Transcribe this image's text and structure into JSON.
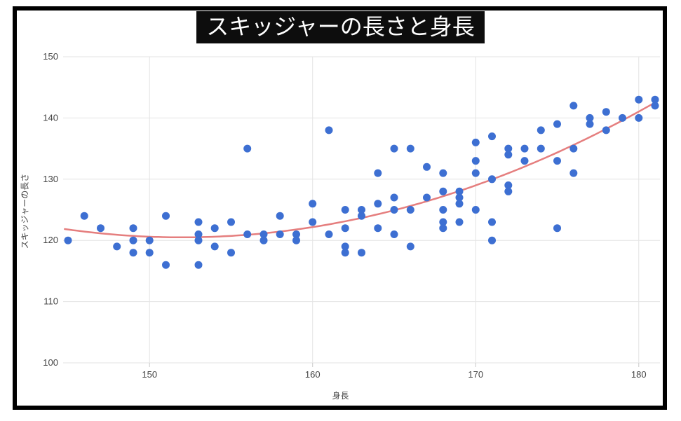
{
  "title": "スキッジャーの長さと身長",
  "colors": {
    "point": "#3d6fd2",
    "trend": "#e57e7e",
    "grid": "#e3e3e3",
    "tick_text": "#444444",
    "title_bg": "#0d0d0d",
    "title_fg": "#ffffff",
    "frame": "#000000"
  },
  "chart_data": {
    "type": "scatter",
    "title": "スキッジャーの長さと身長",
    "xlabel": "身長",
    "ylabel": "スキッジャーの長さ",
    "xlim": [
      144.7,
      181.3
    ],
    "ylim": [
      100,
      150
    ],
    "x_ticks": [
      150,
      160,
      170,
      180
    ],
    "y_ticks": [
      100,
      110,
      120,
      130,
      140,
      150
    ],
    "grid": true,
    "legend": "none",
    "points": [
      [
        145,
        120
      ],
      [
        146,
        124
      ],
      [
        147,
        122
      ],
      [
        148,
        119
      ],
      [
        149,
        122
      ],
      [
        149,
        120
      ],
      [
        149,
        118
      ],
      [
        150,
        120
      ],
      [
        150,
        118
      ],
      [
        151,
        124
      ],
      [
        151,
        116
      ],
      [
        153,
        123
      ],
      [
        153,
        121
      ],
      [
        153,
        120
      ],
      [
        153,
        116
      ],
      [
        154,
        122
      ],
      [
        154,
        119
      ],
      [
        155,
        123
      ],
      [
        155,
        118
      ],
      [
        156,
        135
      ],
      [
        156,
        121
      ],
      [
        157,
        121
      ],
      [
        157,
        120
      ],
      [
        158,
        124
      ],
      [
        158,
        121
      ],
      [
        159,
        121
      ],
      [
        159,
        120
      ],
      [
        160,
        126
      ],
      [
        160,
        123
      ],
      [
        161,
        138
      ],
      [
        161,
        121
      ],
      [
        162,
        125
      ],
      [
        162,
        122
      ],
      [
        162,
        119
      ],
      [
        162,
        118
      ],
      [
        163,
        125
      ],
      [
        163,
        124
      ],
      [
        163,
        118
      ],
      [
        164,
        131
      ],
      [
        164,
        126
      ],
      [
        164,
        122
      ],
      [
        165,
        135
      ],
      [
        165,
        127
      ],
      [
        165,
        125
      ],
      [
        165,
        121
      ],
      [
        166,
        135
      ],
      [
        166,
        125
      ],
      [
        166,
        119
      ],
      [
        167,
        132
      ],
      [
        167,
        127
      ],
      [
        168,
        131
      ],
      [
        168,
        128
      ],
      [
        168,
        125
      ],
      [
        168,
        123
      ],
      [
        168,
        122
      ],
      [
        169,
        128
      ],
      [
        169,
        127
      ],
      [
        169,
        126
      ],
      [
        169,
        123
      ],
      [
        170,
        136
      ],
      [
        170,
        133
      ],
      [
        170,
        131
      ],
      [
        170,
        125
      ],
      [
        171,
        137
      ],
      [
        171,
        130
      ],
      [
        171,
        123
      ],
      [
        171,
        120
      ],
      [
        172,
        135
      ],
      [
        172,
        134
      ],
      [
        172,
        129
      ],
      [
        172,
        128
      ],
      [
        173,
        135
      ],
      [
        173,
        133
      ],
      [
        174,
        138
      ],
      [
        174,
        135
      ],
      [
        175,
        139
      ],
      [
        175,
        133
      ],
      [
        175,
        122
      ],
      [
        176,
        142
      ],
      [
        176,
        135
      ],
      [
        176,
        131
      ],
      [
        177,
        140
      ],
      [
        177,
        139
      ],
      [
        178,
        141
      ],
      [
        178,
        138
      ],
      [
        179,
        140
      ],
      [
        180,
        143
      ],
      [
        180,
        140
      ],
      [
        181,
        143
      ],
      [
        181,
        142
      ]
    ],
    "trendline": {
      "shape": "quadratic",
      "vertex_x": 152,
      "vertex_y": 120.5,
      "a": 0.0262,
      "x_start": 144.8,
      "x_end": 181.0
    }
  }
}
